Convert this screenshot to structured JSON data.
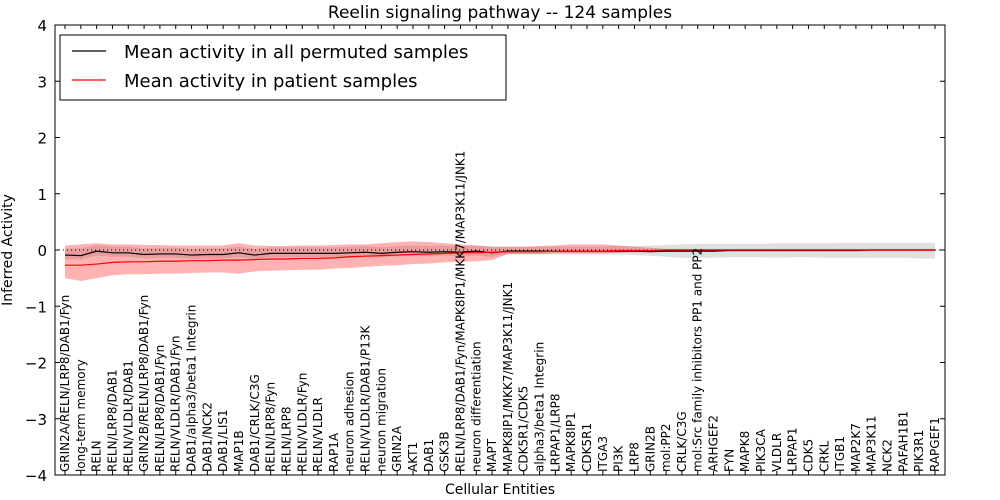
{
  "chart_data": {
    "type": "line",
    "title": "Reelin signaling pathway -- 124 samples",
    "xlabel": "Cellular Entities",
    "ylabel": "Inferred Activity",
    "ylim": [
      -4,
      4
    ],
    "yticks": [
      -4,
      -3,
      -2,
      -1,
      0,
      1,
      2,
      3,
      4
    ],
    "legend_location": "top-left",
    "categories": [
      "GRIN2A/RELN/LRP8/DAB1/Fyn",
      "long-term memory",
      "RELN",
      "RELN/LRP8/DAB1",
      "RELN/VLDLR/DAB1",
      "GRIN2B/RELN/LRP8/DAB1/Fyn",
      "RELN/LRP8/DAB1/Fyn",
      "RELN/VLDLR/DAB1/Fyn",
      "DAB1/alpha3/beta1 Integrin",
      "DAB1/NCK2",
      "DAB1/LIS1",
      "MAP1B",
      "DAB1/CRLK/C3G",
      "RELN/LRP8/Fyn",
      "RELN/LRP8",
      "RELN/VLDLR/Fyn",
      "RELN/VLDLR",
      "RAP1A",
      "neuron adhesion",
      "RELN/VLDLR/DAB1/P13K",
      "neuron migration",
      "GRIN2A",
      "AKT1",
      "DAB1",
      "GSK3B",
      "RELN/LRP8/DAB1/Fyn/MAPK8IP1/MKK7/MAP3K11/JNK1",
      "neuron differentiation",
      "MAPT",
      "MAPK8IP1/MKK7/MAP3K11/JNK1",
      "CDK5R1/CDK5",
      "alpha3/beta1 Integrin",
      "LRPAP1/LRP8",
      "MAPK8IP1",
      "CDK5R1",
      "ITGA3",
      "PI3K",
      "LRP8",
      "GRIN2B",
      "mol:PP2",
      "CRLK/C3G",
      "mol:Src family inhibitors PP1 and PP2",
      "ARHGEF2",
      "FYN",
      "MAPK8",
      "PIK3CA",
      "VLDLR",
      "LRPAP1",
      "CDK5",
      "CRKL",
      "ITGB1",
      "MAP2K7",
      "MAP3K11",
      "NCK2",
      "PAFAH1B1",
      "PIK3R1",
      "RAPGEF1"
    ],
    "series": [
      {
        "name": "Mean activity in all permuted samples",
        "color": "#000000",
        "values": [
          -0.09,
          -0.1,
          -0.02,
          -0.05,
          -0.05,
          -0.08,
          -0.07,
          -0.07,
          -0.09,
          -0.08,
          -0.08,
          -0.05,
          -0.09,
          -0.06,
          -0.06,
          -0.06,
          -0.06,
          -0.06,
          -0.05,
          -0.04,
          -0.06,
          -0.04,
          -0.03,
          -0.04,
          -0.03,
          -0.04,
          -0.02,
          -0.05,
          -0.02,
          -0.02,
          -0.02,
          -0.02,
          -0.02,
          -0.02,
          -0.02,
          -0.02,
          -0.02,
          -0.03,
          -0.02,
          -0.02,
          -0.02,
          -0.02,
          -0.01,
          -0.01,
          -0.01,
          -0.01,
          -0.01,
          -0.01,
          -0.01,
          -0.01,
          -0.01,
          0.0,
          0.0,
          0.0,
          0.0,
          0.0
        ],
        "band_lower": [
          -0.16,
          -0.17,
          -0.1,
          -0.12,
          -0.12,
          -0.15,
          -0.14,
          -0.14,
          -0.16,
          -0.15,
          -0.15,
          -0.12,
          -0.16,
          -0.13,
          -0.13,
          -0.13,
          -0.13,
          -0.13,
          -0.12,
          -0.11,
          -0.13,
          -0.11,
          -0.1,
          -0.11,
          -0.1,
          -0.11,
          -0.1,
          -0.12,
          -0.08,
          -0.08,
          -0.08,
          -0.08,
          -0.08,
          -0.08,
          -0.08,
          -0.08,
          -0.09,
          -0.1,
          -0.12,
          -0.14,
          -0.14,
          -0.14,
          -0.13,
          -0.13,
          -0.13,
          -0.14,
          -0.13,
          -0.13,
          -0.14,
          -0.14,
          -0.14,
          -0.14,
          -0.14,
          -0.14,
          -0.15,
          -0.15
        ],
        "band_upper": [
          0.03,
          0.03,
          0.09,
          0.06,
          0.06,
          0.03,
          0.04,
          0.04,
          0.02,
          0.03,
          0.03,
          0.06,
          0.02,
          0.05,
          0.05,
          0.05,
          0.05,
          0.05,
          0.06,
          0.07,
          0.05,
          0.07,
          0.08,
          0.07,
          0.08,
          0.07,
          0.08,
          0.06,
          0.06,
          0.06,
          0.06,
          0.06,
          0.06,
          0.06,
          0.06,
          0.07,
          0.07,
          0.08,
          0.09,
          0.1,
          0.11,
          0.11,
          0.11,
          0.11,
          0.11,
          0.12,
          0.12,
          0.12,
          0.12,
          0.13,
          0.13,
          0.13,
          0.13,
          0.13,
          0.13,
          0.13
        ]
      },
      {
        "name": "Mean activity in patient samples",
        "color": "#ff0000",
        "values": [
          -0.27,
          -0.27,
          -0.25,
          -0.22,
          -0.21,
          -0.21,
          -0.2,
          -0.2,
          -0.19,
          -0.19,
          -0.18,
          -0.18,
          -0.17,
          -0.16,
          -0.16,
          -0.15,
          -0.15,
          -0.14,
          -0.12,
          -0.11,
          -0.1,
          -0.09,
          -0.08,
          -0.07,
          -0.06,
          -0.05,
          -0.05,
          -0.04,
          -0.03,
          -0.03,
          -0.03,
          -0.02,
          -0.02,
          -0.02,
          -0.02,
          -0.01,
          -0.01,
          -0.01,
          0.0,
          0.0,
          0.0,
          0.0,
          0.0,
          0.0,
          0.0,
          0.0,
          0.0,
          0.0,
          0.0,
          0.0,
          0.0,
          0.0,
          0.0,
          0.0,
          0.0,
          0.0
        ],
        "band_lower": [
          -0.5,
          -0.55,
          -0.5,
          -0.45,
          -0.43,
          -0.43,
          -0.42,
          -0.42,
          -0.41,
          -0.4,
          -0.4,
          -0.42,
          -0.38,
          -0.37,
          -0.36,
          -0.35,
          -0.35,
          -0.33,
          -0.32,
          -0.3,
          -0.28,
          -0.27,
          -0.25,
          -0.24,
          -0.22,
          -0.21,
          -0.2,
          -0.18,
          -0.07,
          -0.07,
          -0.07,
          -0.06,
          -0.06,
          -0.06,
          -0.06,
          -0.05,
          -0.04,
          -0.04,
          -0.03,
          -0.03,
          -0.02,
          -0.02,
          -0.02,
          -0.02,
          -0.02,
          -0.02,
          -0.02,
          -0.02,
          -0.02,
          -0.02,
          -0.02,
          -0.02,
          -0.02,
          -0.02,
          -0.02,
          -0.02
        ],
        "band_upper": [
          0.08,
          0.1,
          0.12,
          0.1,
          0.1,
          0.09,
          0.09,
          0.08,
          0.08,
          0.08,
          0.08,
          0.12,
          0.08,
          0.07,
          0.07,
          0.08,
          0.08,
          0.09,
          0.1,
          0.1,
          0.12,
          0.14,
          0.15,
          0.14,
          0.12,
          0.1,
          0.08,
          0.06,
          0.06,
          0.06,
          0.07,
          0.08,
          0.1,
          0.1,
          0.1,
          0.08,
          0.06,
          0.04,
          0.02,
          0.02,
          0.02,
          0.02,
          0.02,
          0.02,
          0.02,
          0.02,
          0.02,
          0.02,
          0.02,
          0.02,
          0.02,
          0.02,
          0.02,
          0.02,
          0.02,
          0.02
        ]
      }
    ],
    "reference_line": {
      "value": 0,
      "style": "dotted"
    }
  }
}
